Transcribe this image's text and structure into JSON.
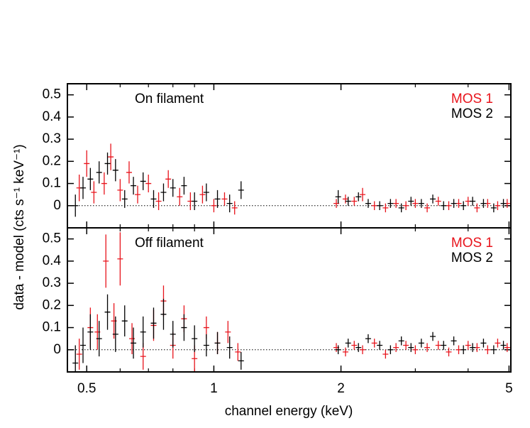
{
  "chart_data": [
    {
      "type": "scatter",
      "annotation": "On filament",
      "ylabel": "data - model (cts s⁻¹ keV⁻¹)",
      "xscale": "log",
      "xlim": [
        0.45,
        5.05
      ],
      "ylim": [
        -0.1,
        0.55
      ],
      "yticks": [
        0,
        0.1,
        0.2,
        0.3,
        0.4,
        0.5
      ],
      "hline": 0,
      "legend": "upper right",
      "series": [
        {
          "name": "MOS 1",
          "color": "#e8141c",
          "x": [
            0.48,
            0.5,
            0.52,
            0.55,
            0.57,
            0.6,
            0.63,
            0.66,
            0.7,
            0.74,
            0.78,
            0.83,
            0.88,
            0.94,
            1.0,
            1.06,
            1.12,
            1.95,
            2.05,
            2.15,
            2.25,
            2.4,
            2.55,
            2.7,
            2.85,
            3.0,
            3.2,
            3.4,
            3.6,
            3.8,
            4.0,
            4.2,
            4.45,
            4.7,
            4.95
          ],
          "values": [
            0.08,
            0.19,
            0.06,
            0.1,
            0.22,
            0.07,
            0.15,
            0.05,
            0.1,
            0.02,
            0.12,
            0.04,
            0.02,
            0.05,
            0.0,
            0.03,
            -0.01,
            0.01,
            0.03,
            0.02,
            0.05,
            0.0,
            -0.01,
            0.01,
            0.0,
            0.01,
            -0.01,
            0.02,
            0.0,
            0.01,
            0.02,
            -0.01,
            0.01,
            0.0,
            0.01
          ],
          "yerr": [
            0.06,
            0.06,
            0.05,
            0.05,
            0.06,
            0.05,
            0.05,
            0.04,
            0.04,
            0.04,
            0.04,
            0.04,
            0.04,
            0.04,
            0.03,
            0.03,
            0.03,
            0.02,
            0.02,
            0.02,
            0.03,
            0.02,
            0.02,
            0.02,
            0.02,
            0.02,
            0.02,
            0.02,
            0.02,
            0.02,
            0.02,
            0.02,
            0.02,
            0.02,
            0.02
          ]
        },
        {
          "name": "MOS 2",
          "color": "#000000",
          "x": [
            0.47,
            0.49,
            0.51,
            0.535,
            0.56,
            0.585,
            0.615,
            0.645,
            0.68,
            0.72,
            0.76,
            0.8,
            0.85,
            0.9,
            0.96,
            1.02,
            1.09,
            1.16,
            1.97,
            2.08,
            2.2,
            2.32,
            2.47,
            2.62,
            2.78,
            2.93,
            3.1,
            3.3,
            3.5,
            3.7,
            3.9,
            4.1,
            4.35,
            4.6,
            4.85
          ],
          "values": [
            0.0,
            0.08,
            0.12,
            0.15,
            0.19,
            0.16,
            0.03,
            0.09,
            0.11,
            0.03,
            0.06,
            0.08,
            0.09,
            0.02,
            0.06,
            0.03,
            0.01,
            0.07,
            0.04,
            0.02,
            0.04,
            0.01,
            0.0,
            0.01,
            -0.01,
            0.02,
            0.01,
            0.03,
            0.0,
            0.01,
            0.0,
            0.02,
            0.01,
            -0.01,
            0.01
          ],
          "yerr": [
            0.05,
            0.05,
            0.05,
            0.05,
            0.05,
            0.05,
            0.04,
            0.04,
            0.04,
            0.04,
            0.04,
            0.04,
            0.04,
            0.04,
            0.04,
            0.04,
            0.04,
            0.04,
            0.03,
            0.02,
            0.02,
            0.02,
            0.02,
            0.02,
            0.02,
            0.02,
            0.02,
            0.02,
            0.02,
            0.02,
            0.02,
            0.02,
            0.02,
            0.02,
            0.02
          ]
        }
      ]
    },
    {
      "type": "scatter",
      "annotation": "Off filament",
      "xlabel": "channel energy (keV)",
      "xscale": "log",
      "xlim": [
        0.45,
        5.05
      ],
      "xticks": [
        0.5,
        1,
        2,
        5
      ],
      "xminorticks": [
        0.6,
        0.7,
        0.8,
        0.9,
        3,
        4
      ],
      "ylim": [
        -0.1,
        0.55
      ],
      "yticks": [
        0,
        0.1,
        0.2,
        0.3,
        0.4,
        0.5
      ],
      "hline": 0,
      "legend": "upper right",
      "series": [
        {
          "name": "MOS 1",
          "color": "#e8141c",
          "x": [
            0.48,
            0.51,
            0.53,
            0.555,
            0.58,
            0.6,
            0.64,
            0.68,
            0.72,
            0.76,
            0.8,
            0.85,
            0.9,
            0.96,
            1.02,
            1.08,
            1.14,
            1.95,
            2.05,
            2.15,
            2.25,
            2.4,
            2.55,
            2.7,
            2.85,
            3.0,
            3.2,
            3.4,
            3.6,
            3.8,
            4.0,
            4.2,
            4.45,
            4.7,
            4.95
          ],
          "values": [
            -0.02,
            0.1,
            0.08,
            0.4,
            0.13,
            0.41,
            0.05,
            -0.03,
            0.11,
            0.22,
            0.02,
            0.14,
            -0.04,
            0.1,
            0.03,
            0.08,
            -0.01,
            0.01,
            -0.01,
            0.02,
            0.0,
            0.03,
            -0.02,
            0.01,
            0.02,
            0.0,
            0.01,
            0.02,
            -0.01,
            0.0,
            0.02,
            0.01,
            0.0,
            0.03,
            0.01
          ],
          "yerr": [
            0.07,
            0.09,
            0.08,
            0.12,
            0.08,
            0.12,
            0.07,
            0.06,
            0.07,
            0.07,
            0.06,
            0.06,
            0.06,
            0.05,
            0.05,
            0.05,
            0.04,
            0.02,
            0.02,
            0.02,
            0.02,
            0.02,
            0.02,
            0.02,
            0.02,
            0.02,
            0.02,
            0.02,
            0.02,
            0.02,
            0.02,
            0.02,
            0.02,
            0.02,
            0.02
          ]
        },
        {
          "name": "MOS 2",
          "color": "#000000",
          "x": [
            0.47,
            0.49,
            0.51,
            0.535,
            0.56,
            0.585,
            0.615,
            0.645,
            0.68,
            0.72,
            0.76,
            0.8,
            0.85,
            0.9,
            0.96,
            1.02,
            1.09,
            1.16,
            1.97,
            2.08,
            2.2,
            2.32,
            2.47,
            2.62,
            2.78,
            2.93,
            3.1,
            3.3,
            3.5,
            3.7,
            3.9,
            4.1,
            4.35,
            4.6,
            4.85
          ],
          "values": [
            -0.06,
            0.02,
            0.08,
            0.05,
            0.17,
            0.07,
            0.13,
            0.03,
            0.08,
            0.12,
            0.16,
            0.07,
            0.1,
            0.05,
            0.02,
            0.03,
            0.01,
            -0.05,
            0.0,
            0.03,
            0.01,
            0.05,
            0.02,
            0.0,
            0.04,
            0.01,
            0.03,
            0.06,
            0.02,
            0.04,
            0.0,
            0.01,
            0.03,
            0.0,
            0.02
          ],
          "yerr": [
            0.08,
            0.08,
            0.08,
            0.08,
            0.08,
            0.08,
            0.07,
            0.07,
            0.07,
            0.07,
            0.07,
            0.06,
            0.06,
            0.06,
            0.05,
            0.05,
            0.05,
            0.04,
            0.02,
            0.02,
            0.02,
            0.02,
            0.02,
            0.02,
            0.02,
            0.02,
            0.02,
            0.02,
            0.02,
            0.02,
            0.02,
            0.02,
            0.02,
            0.02,
            0.02
          ]
        }
      ]
    }
  ]
}
